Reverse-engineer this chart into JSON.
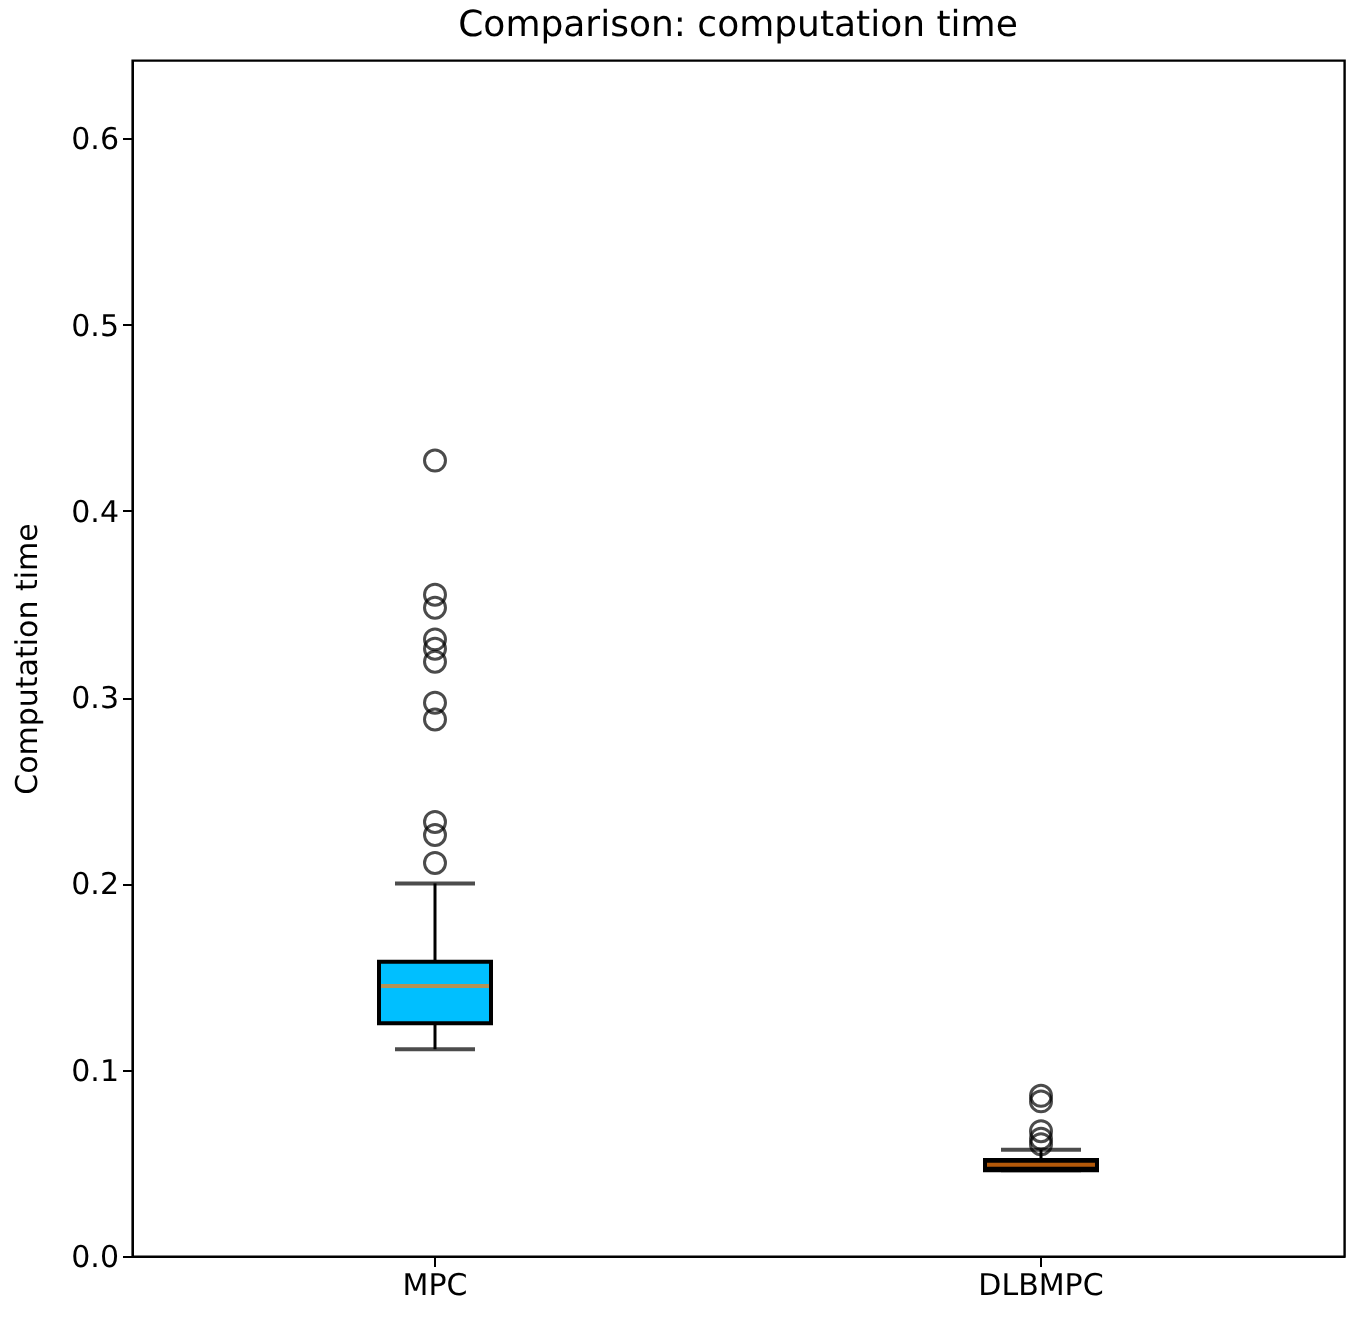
{
  "chart_data": {
    "type": "box",
    "title": "Comparison: computation time",
    "ylabel": "Computation time",
    "categories": [
      "MPC",
      "DLBMPC"
    ],
    "colors": [
      "#00bfff",
      "#000000"
    ],
    "boxes": [
      {
        "low": 0.111,
        "q1": 0.125,
        "median": 0.145,
        "q3": 0.158,
        "high": 0.2,
        "outliers": [
          0.427,
          0.355,
          0.348,
          0.331,
          0.326,
          0.319,
          0.297,
          0.288,
          0.233,
          0.226,
          0.211
        ]
      },
      {
        "low": 0.046,
        "q1": 0.046,
        "median": 0.049,
        "q3": 0.0515,
        "high": 0.057,
        "outliers": [
          0.086,
          0.083,
          0.067,
          0.063,
          0.06
        ]
      }
    ],
    "ylim": [
      0,
      0.642
    ],
    "yticks": [
      {
        "value": 0,
        "label": "0.0"
      },
      0.1,
      0.2,
      0.3,
      0.4,
      0.5,
      0.6
    ],
    "grid": false
  }
}
